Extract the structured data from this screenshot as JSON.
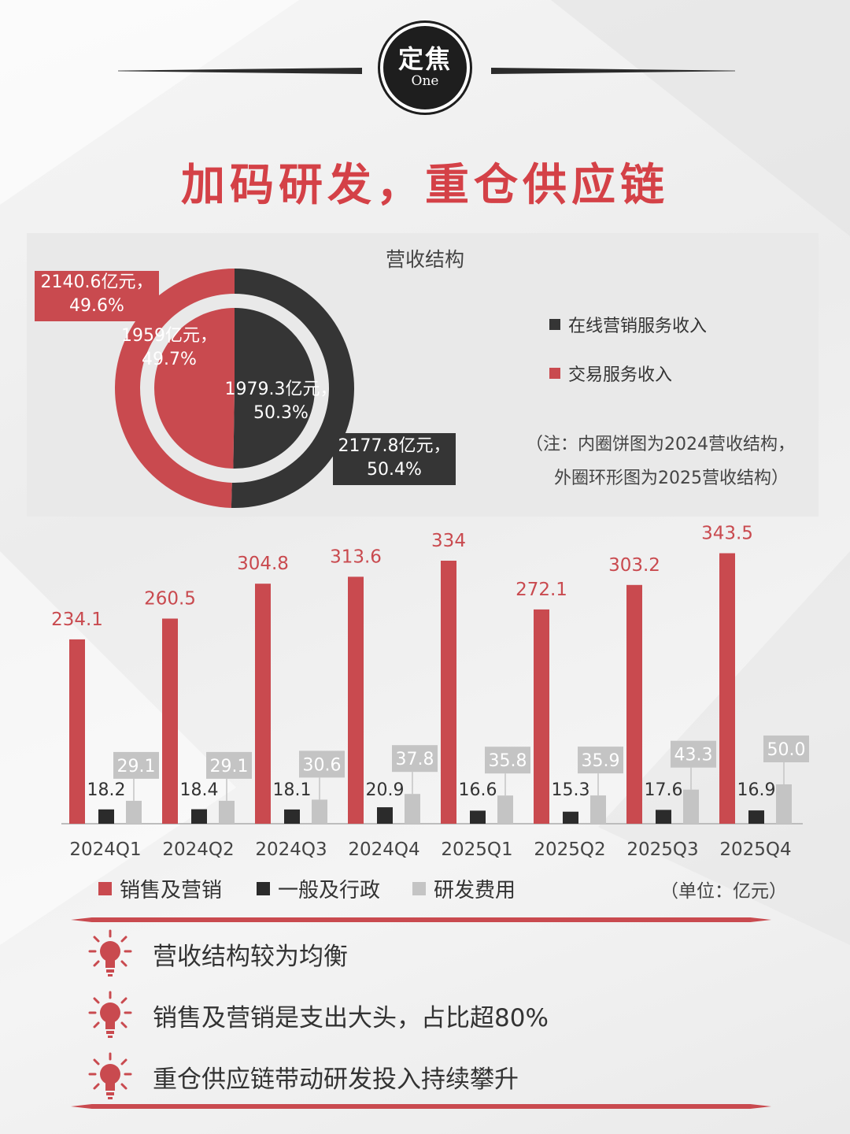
{
  "header": {
    "badge_main": "定焦",
    "badge_sub": "One",
    "title": "加码研发，重仓供应链"
  },
  "revenue": {
    "title": "营收结构",
    "outer_red_label": "2140.6亿元，",
    "outer_red_pct": "49.6%",
    "inner_red_label": "1959亿元，",
    "inner_red_pct": "49.7%",
    "inner_dark_label": "1979.3亿元，",
    "inner_dark_pct": "50.3%",
    "outer_dark_label": "2177.8亿元，",
    "outer_dark_pct": "50.4%",
    "legend_online": "在线营销服务收入",
    "legend_trade": "交易服务收入",
    "note_line1": "（注：内圈饼图为2024营收结构，",
    "note_line2": "外圈环形图为2025营收结构）",
    "colors": {
      "red": "#c94a4f",
      "dark": "#353535"
    }
  },
  "chart_data": [
    {
      "type": "pie",
      "title": "营收结构",
      "year": "2024",
      "slices": [
        {
          "name": "在线营销服务收入",
          "value": 1979.3,
          "pct": 50.3
        },
        {
          "name": "交易服务收入",
          "value": 1959,
          "pct": 49.7
        }
      ]
    },
    {
      "type": "pie",
      "title": "营收结构",
      "year": "2025",
      "slices": [
        {
          "name": "在线营销服务收入",
          "value": 2177.8,
          "pct": 50.4
        },
        {
          "name": "交易服务收入",
          "value": 2140.6,
          "pct": 49.6
        }
      ]
    },
    {
      "type": "bar",
      "categories": [
        "2024Q1",
        "2024Q2",
        "2024Q3",
        "2024Q4",
        "2025Q1",
        "2025Q2",
        "2025Q3",
        "2025Q4"
      ],
      "series": [
        {
          "name": "销售及营销",
          "color": "#c94a4f",
          "values": [
            234.1,
            260.5,
            304.8,
            313.6,
            334,
            272.1,
            303.2,
            343.5
          ],
          "labels": [
            "234.1",
            "260.5",
            "304.8",
            "313.6",
            "334",
            "272.1",
            "303.2",
            "343.5"
          ]
        },
        {
          "name": "一般及行政",
          "color": "#2b2b2b",
          "values": [
            18.2,
            18.4,
            18.1,
            20.9,
            16.6,
            15.3,
            17.6,
            16.9
          ],
          "labels": [
            "18.2",
            "18.4",
            "18.1",
            "20.9",
            "16.6",
            "15.3",
            "17.6",
            "16.9"
          ]
        },
        {
          "name": "研发费用",
          "color": "#c4c4c4",
          "values": [
            29.1,
            29.1,
            30.6,
            37.8,
            35.8,
            35.9,
            43.3,
            50.0
          ],
          "labels": [
            "29.1",
            "29.1",
            "30.6",
            "37.8",
            "35.8",
            "35.9",
            "43.3",
            "50.0"
          ]
        }
      ],
      "unit": "（单位：亿元）",
      "ylim": [
        0,
        350
      ],
      "grid": false,
      "legend_position": "bottom-left"
    }
  ],
  "takeaways": [
    "营收结构较为均衡",
    "销售及营销是支出大头，占比超80%",
    "重仓供应链带动研发投入持续攀升"
  ],
  "icons": {
    "takeaway_icon": "lightbulb-icon"
  }
}
